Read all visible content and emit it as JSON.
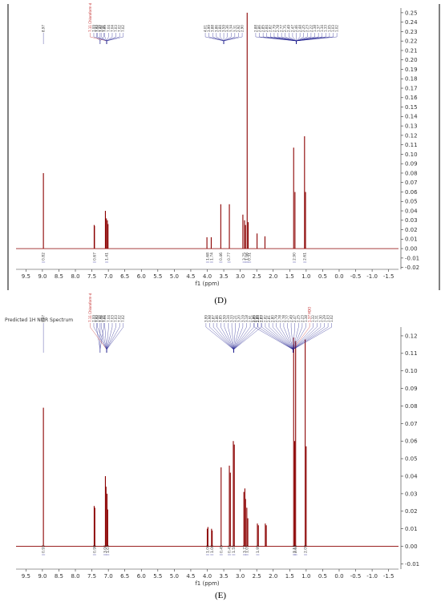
{
  "chart_data": [
    {
      "type": "line",
      "panel": "D",
      "caption": "(D)",
      "title": "",
      "xlabel": "f1 (ppm)",
      "ylabel": "",
      "xlim": [
        9.8,
        -1.8
      ],
      "ylim": [
        -0.022,
        0.255
      ],
      "x_ticks": [
        "9.5",
        "9.0",
        "8.5",
        "8.0",
        "7.5",
        "7.0",
        "6.5",
        "6.0",
        "5.5",
        "5.0",
        "4.5",
        "4.0",
        "3.5",
        "3.0",
        "2.5",
        "2.0",
        "1.5",
        "1.0",
        "0.5",
        "0.0",
        "-0.5",
        "-1.0",
        "-1.5"
      ],
      "y_ticks": [
        "0.25",
        "0.24",
        "0.23",
        "0.22",
        "0.21",
        "0.20",
        "0.19",
        "0.18",
        "0.17",
        "0.16",
        "0.15",
        "0.14",
        "0.13",
        "0.12",
        "0.11",
        "0.10",
        "0.09",
        "0.08",
        "0.07",
        "0.06",
        "0.05",
        "0.04",
        "0.03",
        "0.02",
        "0.01",
        "0.00",
        "-0.01",
        "-0.02"
      ],
      "peaks": [
        {
          "x": 8.97,
          "y": 0.08
        },
        {
          "x": 7.43,
          "y": 0.025
        },
        {
          "x": 7.42,
          "y": 0.024
        },
        {
          "x": 7.09,
          "y": 0.04
        },
        {
          "x": 7.06,
          "y": 0.032
        },
        {
          "x": 7.03,
          "y": 0.03
        },
        {
          "x": 7.01,
          "y": 0.026
        },
        {
          "x": 4.01,
          "y": 0.012
        },
        {
          "x": 3.88,
          "y": 0.012
        },
        {
          "x": 3.59,
          "y": 0.047
        },
        {
          "x": 3.33,
          "y": 0.047
        },
        {
          "x": 2.92,
          "y": 0.036
        },
        {
          "x": 2.87,
          "y": 0.03
        },
        {
          "x": 2.84,
          "y": 0.025
        },
        {
          "x": 2.79,
          "y": 0.25
        },
        {
          "x": 2.76,
          "y": 0.028
        },
        {
          "x": 2.49,
          "y": 0.016
        },
        {
          "x": 2.25,
          "y": 0.013
        },
        {
          "x": 1.38,
          "y": 0.107
        },
        {
          "x": 1.34,
          "y": 0.06
        },
        {
          "x": 1.05,
          "y": 0.119
        },
        {
          "x": 1.02,
          "y": 0.06
        }
      ],
      "top_labels": [
        {
          "x": 8.97,
          "labels": [
            "8.97"
          ]
        },
        {
          "x": 7.25,
          "labels": [
            "7.43",
            "7.42",
            "7.41"
          ]
        },
        {
          "x": 7.05,
          "labels": [
            "7.11 Chloroform-d",
            "7.09",
            "7.08",
            "7.07",
            "7.05",
            "7.04",
            "7.04",
            "7.03",
            "7.02",
            "7.02"
          ]
        },
        {
          "x": 3.5,
          "labels": [
            "4.01",
            "3.99",
            "3.88",
            "3.86",
            "3.84",
            "3.59",
            "3.36",
            "3.34",
            "3.31",
            "2.92",
            "2.90"
          ]
        },
        {
          "x": 1.3,
          "labels": [
            "2.88",
            "2.86",
            "2.85",
            "2.84",
            "2.82",
            "2.79",
            "2.78",
            "2.77",
            "2.75",
            "2.49",
            "2.47",
            "2.46",
            "2.44",
            "2.25",
            "2.23",
            "2.22",
            "1.38",
            "1.37",
            "1.34",
            "1.33",
            "1.05",
            "1.03",
            "1.02"
          ]
        }
      ],
      "integrals": [
        {
          "x": 8.97,
          "value": "0.82"
        },
        {
          "x": 7.42,
          "value": "0.67"
        },
        {
          "x": 7.05,
          "value": "1.41"
        },
        {
          "x": 3.99,
          "value": "1.68"
        },
        {
          "x": 3.87,
          "value": "1.74"
        },
        {
          "x": 3.59,
          "value": "0.46"
        },
        {
          "x": 3.34,
          "value": "0.77"
        },
        {
          "x": 2.88,
          "value": "3.75"
        },
        {
          "x": 2.8,
          "value": "1.96"
        },
        {
          "x": 2.72,
          "value": "0.31"
        },
        {
          "x": 1.36,
          "value": "2.90"
        },
        {
          "x": 1.04,
          "value": "2.61"
        }
      ]
    },
    {
      "type": "line",
      "panel": "E",
      "caption": "(E)",
      "title": "Predicted 1H NMR Spectrum",
      "xlabel": "f1 (ppm)",
      "ylabel": "",
      "xlim": [
        9.8,
        -1.8
      ],
      "ylim": [
        -0.013,
        0.125
      ],
      "x_ticks": [
        "9.5",
        "9.0",
        "8.5",
        "8.0",
        "7.5",
        "7.0",
        "6.5",
        "6.0",
        "5.5",
        "5.0",
        "4.5",
        "4.0",
        "3.5",
        "3.0",
        "2.5",
        "2.0",
        "1.5",
        "1.0",
        "0.5",
        "0.0",
        "-0.5",
        "-1.0",
        "-1.5"
      ],
      "y_ticks": [
        "0.12",
        "0.11",
        "0.10",
        "0.09",
        "0.08",
        "0.07",
        "0.06",
        "0.05",
        "0.04",
        "0.03",
        "0.02",
        "0.01",
        "0.00",
        "-0.01"
      ],
      "peaks": [
        {
          "x": 8.97,
          "y": 0.079
        },
        {
          "x": 7.43,
          "y": 0.023
        },
        {
          "x": 7.41,
          "y": 0.022
        },
        {
          "x": 7.09,
          "y": 0.04
        },
        {
          "x": 7.07,
          "y": 0.034
        },
        {
          "x": 7.04,
          "y": 0.03
        },
        {
          "x": 7.02,
          "y": 0.021
        },
        {
          "x": 4.0,
          "y": 0.01
        },
        {
          "x": 3.98,
          "y": 0.011
        },
        {
          "x": 3.87,
          "y": 0.01
        },
        {
          "x": 3.85,
          "y": 0.009
        },
        {
          "x": 3.58,
          "y": 0.045
        },
        {
          "x": 3.33,
          "y": 0.046
        },
        {
          "x": 3.3,
          "y": 0.042
        },
        {
          "x": 3.21,
          "y": 0.06
        },
        {
          "x": 3.18,
          "y": 0.058
        },
        {
          "x": 2.89,
          "y": 0.031
        },
        {
          "x": 2.86,
          "y": 0.033
        },
        {
          "x": 2.84,
          "y": 0.027
        },
        {
          "x": 2.8,
          "y": 0.022
        },
        {
          "x": 2.77,
          "y": 0.016
        },
        {
          "x": 2.48,
          "y": 0.013
        },
        {
          "x": 2.45,
          "y": 0.012
        },
        {
          "x": 2.24,
          "y": 0.013
        },
        {
          "x": 2.21,
          "y": 0.012
        },
        {
          "x": 1.38,
          "y": 0.119
        },
        {
          "x": 1.35,
          "y": 0.06
        },
        {
          "x": 1.32,
          "y": 0.117
        },
        {
          "x": 1.03,
          "y": 0.118
        },
        {
          "x": 1.0,
          "y": 0.057
        }
      ],
      "top_labels": [
        {
          "x": 8.97,
          "labels": [
            "8.97"
          ]
        },
        {
          "x": 7.25,
          "labels": [
            "7.43",
            "7.42",
            "7.41"
          ]
        },
        {
          "x": 7.05,
          "labels": [
            "7.11 Chloroform-d",
            "7.09",
            "7.08",
            "7.06",
            "7.04",
            "7.04",
            "7.03",
            "7.03",
            "7.02",
            "7.02"
          ]
        },
        {
          "x": 3.2,
          "labels": [
            "3.99",
            "3.98",
            "3.87",
            "3.86",
            "3.85",
            "3.59",
            "3.34",
            "3.33",
            "3.21",
            "3.20",
            "3.19",
            "3.18",
            "2.91",
            "2.90",
            "2.89",
            "2.87"
          ]
        },
        {
          "x": 1.4,
          "labels": [
            "2.85",
            "2.84",
            "2.83",
            "2.82",
            "2.81",
            "2.80",
            "2.79",
            "2.78",
            "2.78",
            "2.77",
            "2.49",
            "2.47",
            "2.25",
            "2.23",
            "1.38",
            "1.37 HDO",
            "1.32",
            "1.31",
            "1.30",
            "1.29",
            "1.03",
            "1.02"
          ]
        }
      ],
      "integrals": [
        {
          "x": 8.97,
          "value": "0.92"
        },
        {
          "x": 7.42,
          "value": "0.98"
        },
        {
          "x": 7.1,
          "value": "3.00"
        },
        {
          "x": 7.02,
          "value": "1.03"
        },
        {
          "x": 3.99,
          "value": "1.00"
        },
        {
          "x": 3.86,
          "value": "1.00"
        },
        {
          "x": 3.58,
          "value": "0.45"
        },
        {
          "x": 3.33,
          "value": "0.45"
        },
        {
          "x": 3.2,
          "value": "1.55"
        },
        {
          "x": 2.87,
          "value": "3.77"
        },
        {
          "x": 2.8,
          "value": "1.05"
        },
        {
          "x": 2.47,
          "value": "1.95"
        },
        {
          "x": 1.36,
          "value": "2.12"
        },
        {
          "x": 1.32,
          "value": "2.02"
        },
        {
          "x": 1.02,
          "value": "2.09"
        }
      ]
    }
  ],
  "colors": {
    "spectrum": "#8b0000",
    "label_leader": "#1a1a8c",
    "solvent_label": "#c02020",
    "axis": "#333333"
  }
}
